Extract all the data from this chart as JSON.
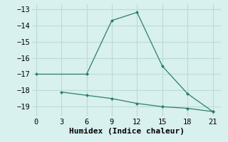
{
  "line1_x": [
    0,
    6,
    9,
    12,
    15,
    18,
    21
  ],
  "line1_y": [
    -17,
    -17,
    -13.7,
    -13.2,
    -16.5,
    -18.2,
    -19.3
  ],
  "line2_x": [
    3,
    6,
    9,
    12,
    15,
    18,
    21
  ],
  "line2_y": [
    -18.1,
    -18.3,
    -18.5,
    -18.8,
    -19.0,
    -19.1,
    -19.3
  ],
  "line_color": "#2d7d6e",
  "bg_color": "#d8f0ee",
  "grid_color": "#b8dcd8",
  "xlabel": "Humidex (Indice chaleur)",
  "xlim": [
    -0.5,
    22
  ],
  "ylim": [
    -19.6,
    -12.7
  ],
  "xticks": [
    0,
    3,
    6,
    9,
    12,
    15,
    18,
    21
  ],
  "yticks": [
    -13,
    -14,
    -15,
    -16,
    -17,
    -18,
    -19
  ],
  "font_size": 7.5,
  "label_font_size": 8
}
